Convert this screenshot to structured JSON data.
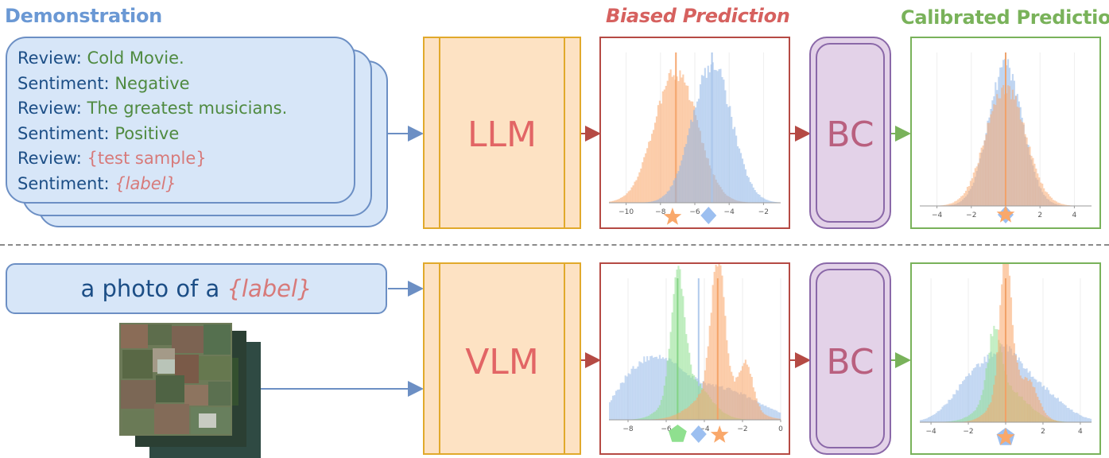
{
  "titles": {
    "demonstration": "Demonstration",
    "biased": "Biased Prediction",
    "calibrated": "Calibrated Prediction"
  },
  "colors": {
    "demonstration": "#6a98d4",
    "biased": "#d6615f",
    "calibrated": "#79b25a",
    "card_fill": "#d7e6f8",
    "model_fill": "#fde2c3",
    "bc_fill": "#e3d2e8"
  },
  "demo": {
    "lines": [
      {
        "key": "Review: ",
        "value": "Cold Movie.",
        "style": "v"
      },
      {
        "key": "Sentiment: ",
        "value": "Negative",
        "style": "v"
      },
      {
        "key": "Review: ",
        "value": "The greatest musicians.",
        "style": "v"
      },
      {
        "key": "Sentiment: ",
        "value": "Positive",
        "style": "v"
      },
      {
        "key": "Review: ",
        "value": "{test sample}",
        "style": "r"
      },
      {
        "key": "Sentiment: ",
        "value": "{label}",
        "style": "ri"
      }
    ]
  },
  "prompt": {
    "prefix": "a photo of a ",
    "label": "{label}"
  },
  "models": {
    "top": "LLM",
    "bottom": "VLM"
  },
  "bc": {
    "top": "BC",
    "bottom": "BC"
  },
  "charts": {
    "top_biased": {
      "ticks": [
        "−10",
        "−8",
        "−6",
        "−4",
        "−2"
      ],
      "xlim": [
        -11,
        -1
      ]
    },
    "top_calibrated": {
      "ticks": [
        "−4",
        "−2",
        "0",
        "2",
        "4"
      ],
      "xlim": [
        -5,
        5
      ]
    },
    "bottom_biased": {
      "ticks": [
        "−8",
        "−6",
        "−4",
        "−2",
        "0"
      ],
      "xlim": [
        -9,
        0
      ]
    },
    "bottom_calibrated": {
      "ticks": [
        "−4",
        "−2",
        "0",
        "2",
        "4"
      ],
      "xlim": [
        -4.6,
        4.6
      ]
    }
  }
}
